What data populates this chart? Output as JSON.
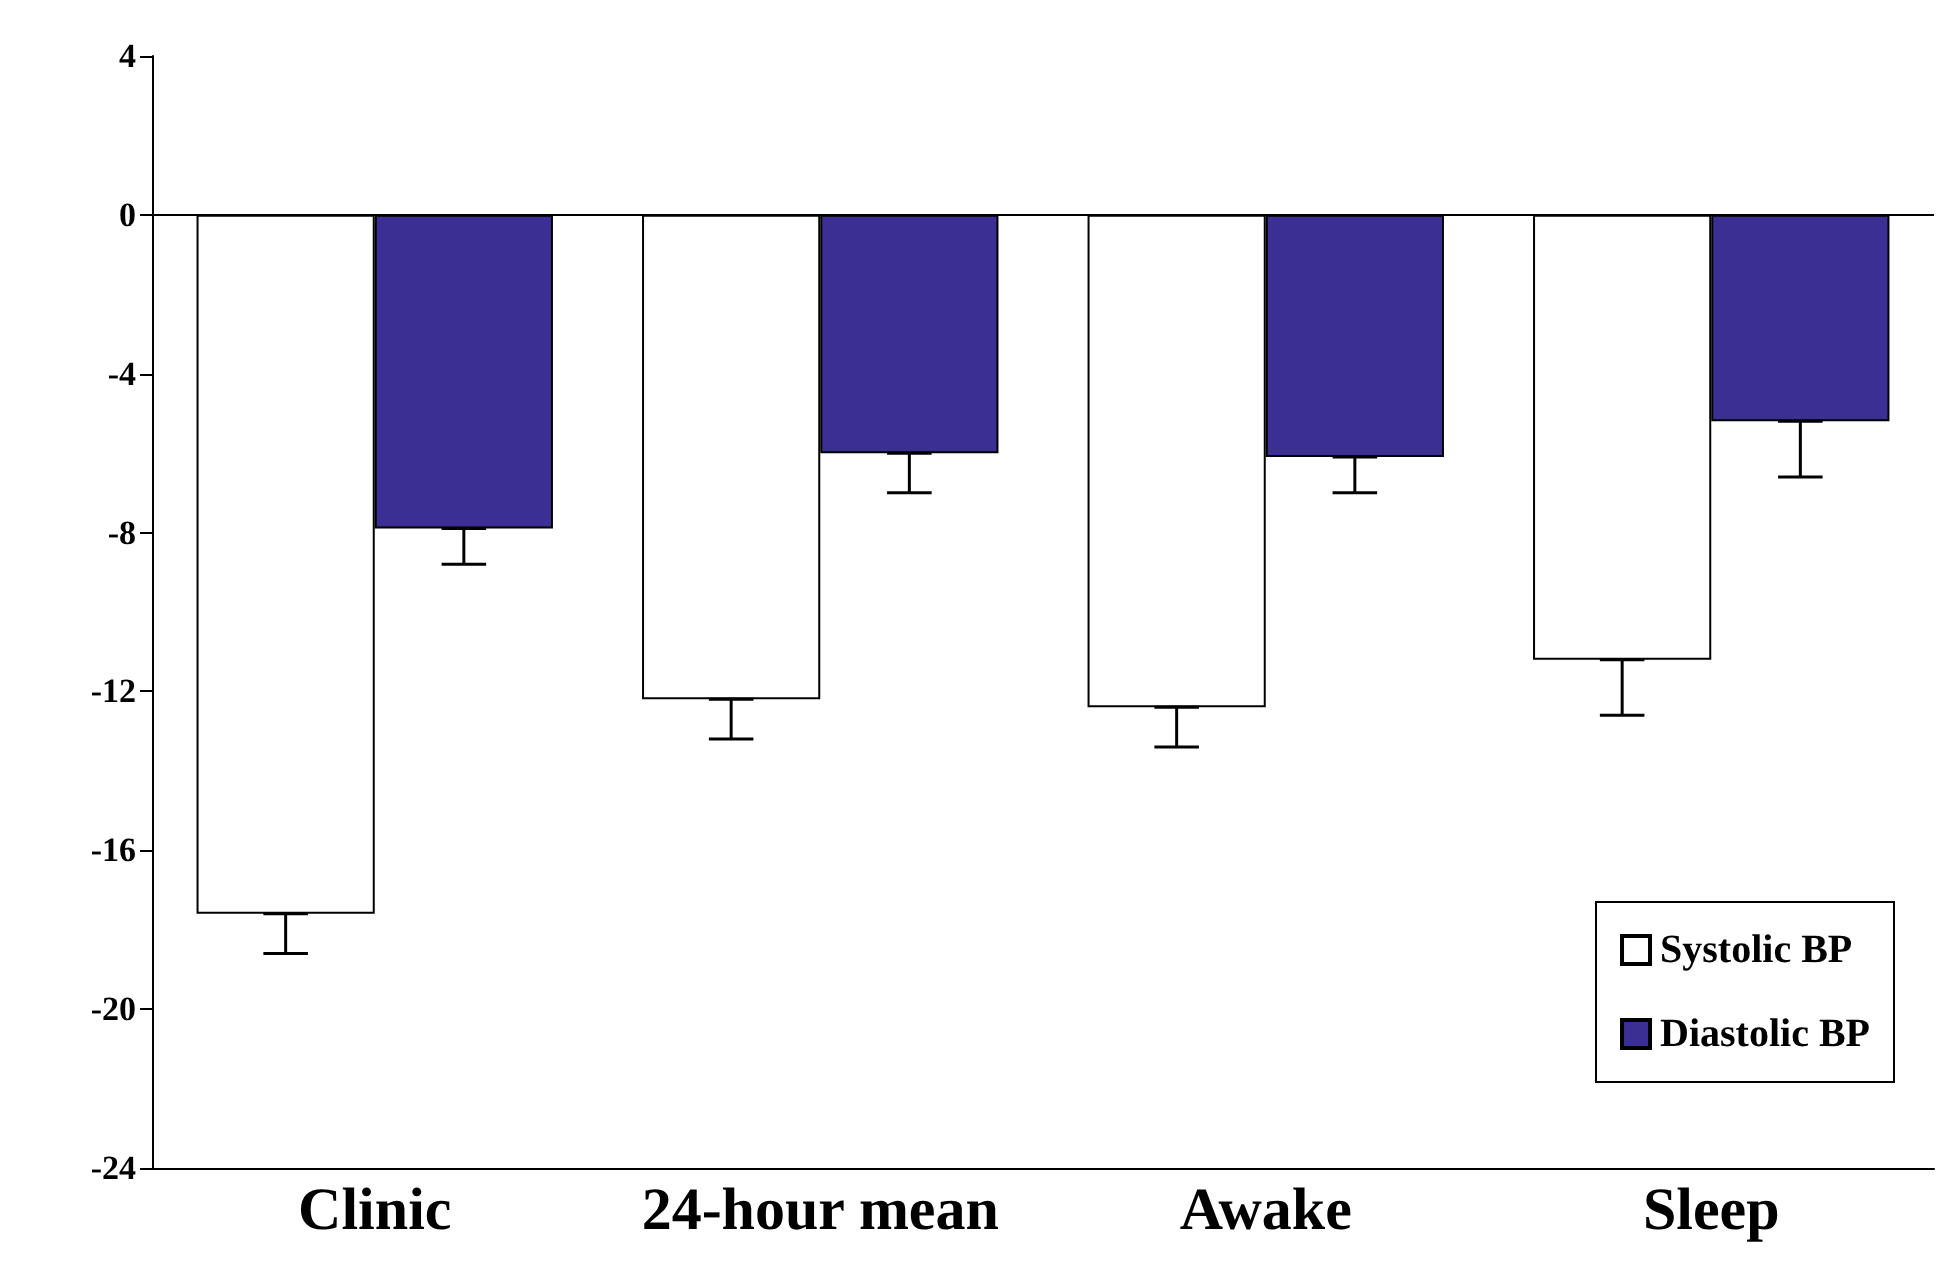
{
  "chart_data": {
    "type": "bar",
    "categories": [
      "Clinic",
      "24-hour mean",
      "Awake",
      "Sleep"
    ],
    "series": [
      {
        "name": "Systolic BP",
        "color": "#ffffff",
        "values": [
          -17.6,
          -12.2,
          -12.4,
          -11.2
        ],
        "errors": [
          [
            -18.6,
            -17.6
          ],
          [
            -13.2,
            -12.2
          ],
          [
            -13.4,
            -12.4
          ],
          [
            -12.6,
            -11.2
          ]
        ]
      },
      {
        "name": "Diastolic BP",
        "color": "#3b2f93",
        "values": [
          -7.9,
          -6.0,
          -6.1,
          -5.2
        ],
        "errors": [
          [
            -8.8,
            -7.9
          ],
          [
            -7.0,
            -6.0
          ],
          [
            -7.0,
            -6.1
          ],
          [
            -6.6,
            -5.2
          ]
        ]
      }
    ],
    "ref_lines": [
      {
        "axis": "y",
        "value": 0
      }
    ],
    "ylim": [
      -24,
      4
    ],
    "yticks": [
      -24,
      -20,
      -16,
      -12,
      -8,
      -4,
      0,
      4
    ],
    "grid": false,
    "legend": "bottom right"
  }
}
